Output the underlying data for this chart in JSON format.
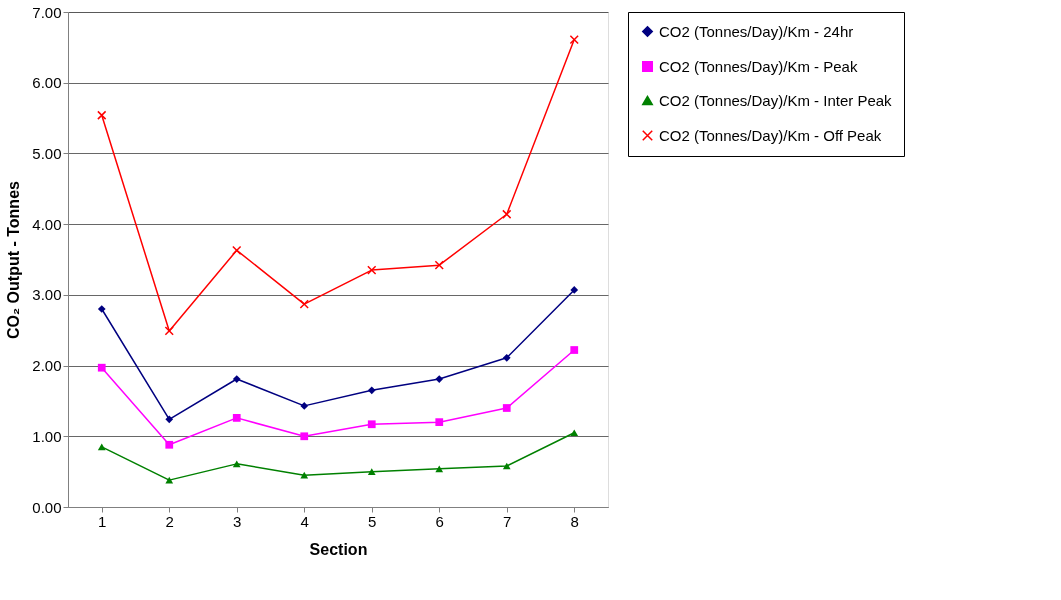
{
  "chart_data": {
    "type": "line",
    "xlabel": "Section",
    "ylabel": "CO₂ Output - Tonnes",
    "categories": [
      "1",
      "2",
      "3",
      "4",
      "5",
      "6",
      "7",
      "8"
    ],
    "series": [
      {
        "name": "CO2 (Tonnes/Day)/Km - 24hr",
        "color": "#000080",
        "marker": "diamond",
        "values": [
          2.8,
          1.24,
          1.81,
          1.43,
          1.65,
          1.81,
          2.11,
          3.07
        ]
      },
      {
        "name": "CO2 (Tonnes/Day)/Km - Peak",
        "color": "#ff00ff",
        "marker": "square",
        "values": [
          1.97,
          0.88,
          1.26,
          1.0,
          1.17,
          1.2,
          1.4,
          2.22
        ]
      },
      {
        "name": "CO2 (Tonnes/Day)/Km - Inter Peak",
        "color": "#008000",
        "marker": "triangle",
        "values": [
          0.85,
          0.38,
          0.61,
          0.45,
          0.5,
          0.54,
          0.58,
          1.05
        ]
      },
      {
        "name": "CO2 (Tonnes/Day)/Km - Off Peak",
        "color": "#ff0000",
        "marker": "cross",
        "values": [
          5.54,
          2.49,
          3.63,
          2.87,
          3.35,
          3.42,
          4.14,
          6.61
        ]
      }
    ],
    "ylim": [
      0,
      7
    ],
    "yticks": [
      {
        "value": 0,
        "label": "0.00"
      },
      {
        "value": 1,
        "label": "1.00"
      },
      {
        "value": 2,
        "label": "2.00"
      },
      {
        "value": 3,
        "label": "3.00"
      },
      {
        "value": 4,
        "label": "4.00"
      },
      {
        "value": 5,
        "label": "5.00"
      },
      {
        "value": 6,
        "label": "6.00"
      },
      {
        "value": 7,
        "label": "7.00"
      }
    ],
    "grid": "y",
    "legend": "right"
  }
}
